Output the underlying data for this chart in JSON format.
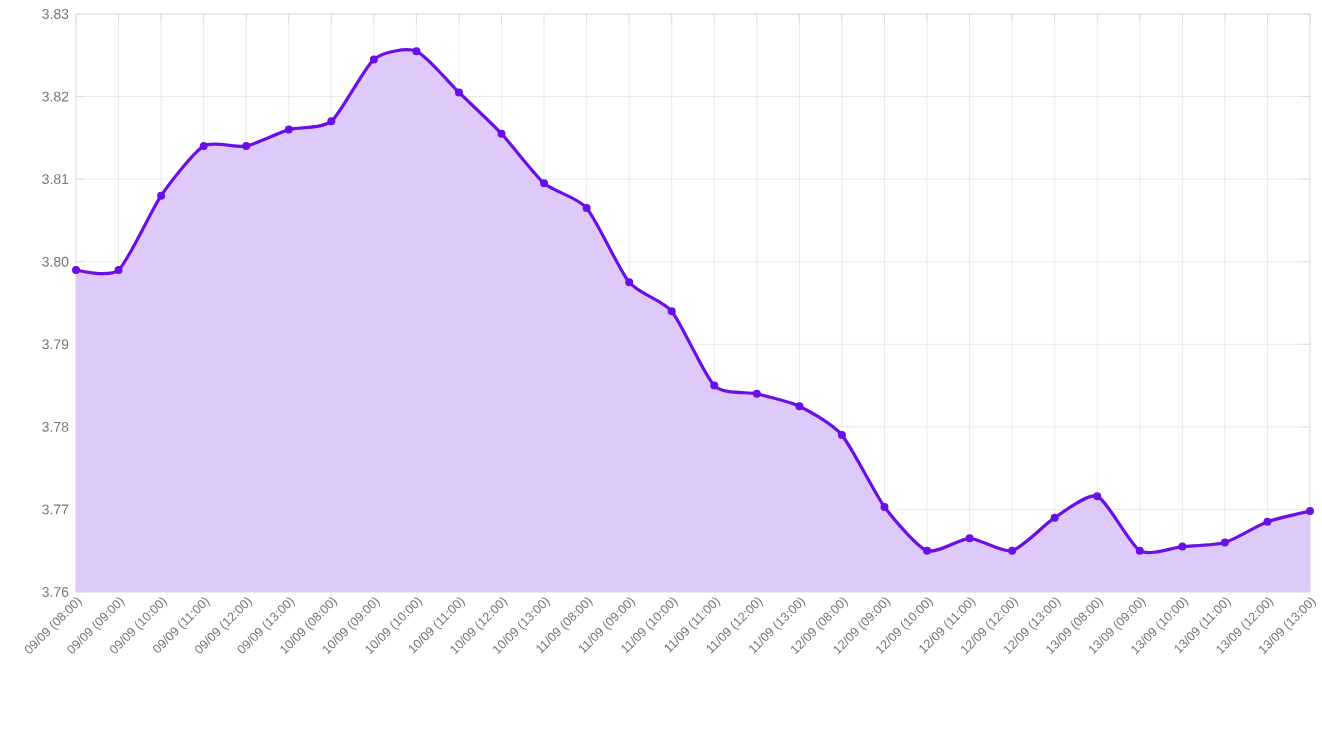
{
  "chart_data": {
    "type": "area",
    "categories": [
      "09/09 (08:00)",
      "09/09 (09:00)",
      "09/09 (10:00)",
      "09/09 (11:00)",
      "09/09 (12:00)",
      "09/09 (13:00)",
      "10/09 (08:00)",
      "10/09 (09:00)",
      "10/09 (10:00)",
      "10/09 (11:00)",
      "10/09 (12:00)",
      "10/09 (13:00)",
      "11/09 (08:00)",
      "11/09 (09:00)",
      "11/09 (10:00)",
      "11/09 (11:00)",
      "11/09 (12:00)",
      "11/09 (13:00)",
      "12/09 (08:00)",
      "12/09 (09:00)",
      "12/09 (10:00)",
      "12/09 (11:00)",
      "12/09 (12:00)",
      "12/09 (13:00)",
      "13/09 (08:00)",
      "13/09 (09:00)",
      "13/09 (10:00)",
      "13/09 (11:00)",
      "13/09 (12:00)",
      "13/09 (13:00)"
    ],
    "series": [
      {
        "color": "#6a0fe8",
        "values": [
          3.799,
          3.799,
          3.808,
          3.814,
          3.814,
          3.816,
          3.817,
          3.8245,
          3.8255,
          3.8205,
          3.8155,
          3.8095,
          3.8065,
          3.7975,
          3.794,
          3.785,
          3.784,
          3.7825,
          3.779,
          3.7703,
          3.765,
          3.7665,
          3.765,
          3.769,
          3.7716,
          3.765,
          3.7655,
          3.766,
          3.7685,
          3.7698
        ]
      }
    ],
    "ylim": [
      3.76,
      3.83
    ],
    "yticks": [
      3.76,
      3.77,
      3.78,
      3.79,
      {
        "value": 3.8,
        "label": "3.80"
      },
      3.81,
      3.82,
      3.83
    ],
    "grid": true,
    "marker": "circle",
    "line_style": "solid"
  }
}
